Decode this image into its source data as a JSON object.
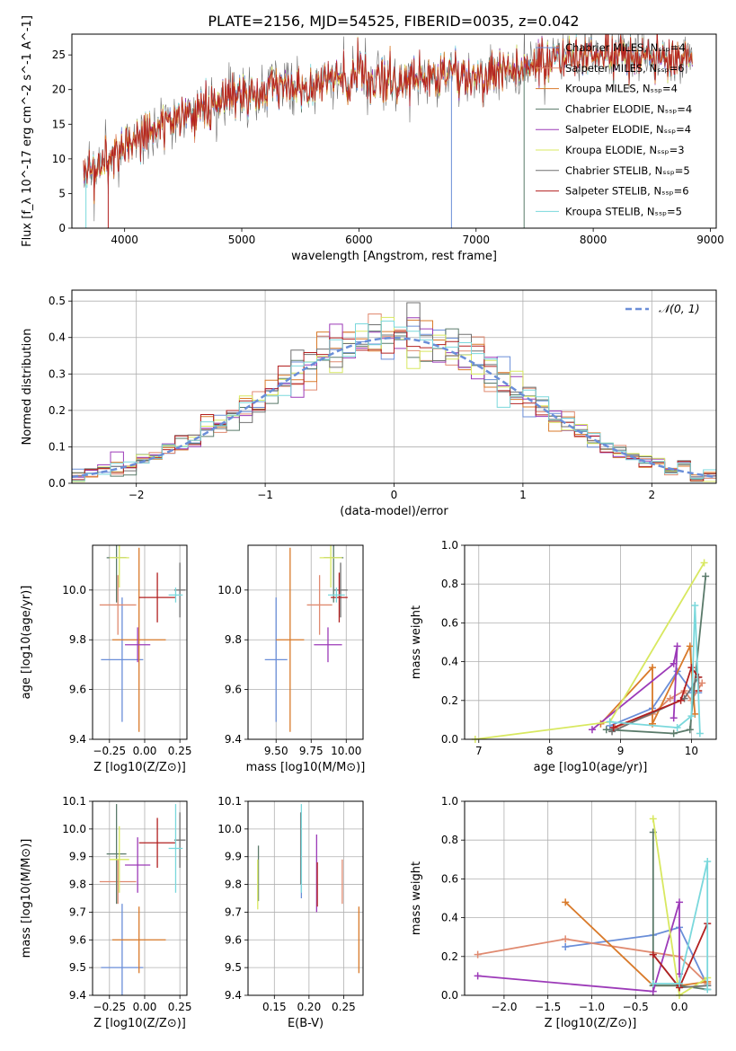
{
  "figure": {
    "title": "PLATE=2156, MJD=54525, FIBERID=0035, z=0.042"
  },
  "model_colors": [
    "#6a8ed8",
    "#e08a70",
    "#d97a2a",
    "#5a7a6a",
    "#9c3ab8",
    "#d8e860",
    "#707070",
    "#b22020",
    "#7ad8dc"
  ],
  "chart_data": [
    {
      "id": "spectrum",
      "type": "line",
      "title": "PLATE=2156, MJD=54525, FIBERID=0035, z=0.042",
      "xlabel": "wavelength [Angstrom, rest frame]",
      "ylabel": "Flux [f_λ 10^-17 erg cm^-2 s^-1 A^-1]",
      "xlim": [
        3550,
        9050
      ],
      "ylim": [
        0,
        28
      ],
      "xticks": [
        4000,
        5000,
        6000,
        7000,
        8000,
        9000
      ],
      "yticks": [
        0,
        5,
        10,
        15,
        20,
        25
      ],
      "grid": false,
      "legend_position": "right",
      "legend": [
        "Chabrier MILES, N_SSP=4",
        "Salpeter MILES, N_SSP=6",
        "Kroupa MILES, N_SSP=4",
        "Chabrier ELODIE, N_SSP=4",
        "Salpeter ELODIE, N_SSP=4",
        "Kroupa ELODIE, N_SSP=3",
        "Chabrier STELIB, N_SSP=5",
        "Salpeter STELIB, N_SSP=6",
        "Kroupa STELIB, N_SSP=5"
      ],
      "continuum": {
        "x": [
          3650,
          3800,
          4000,
          4200,
          4500,
          4800,
          5000,
          5300,
          5600,
          6000,
          6300,
          6600,
          7000,
          7400,
          7800,
          8200,
          8600,
          8850
        ],
        "y": [
          7,
          9,
          12,
          14,
          16,
          18,
          19,
          20.5,
          21,
          21.5,
          21.5,
          22,
          22,
          23,
          25,
          25,
          24.5,
          24.5
        ]
      }
    },
    {
      "id": "residuals",
      "type": "line",
      "xlabel": "(data-model)/error",
      "ylabel": "Normed distribution",
      "xlim": [
        -2.5,
        2.5
      ],
      "ylim": [
        0,
        0.53
      ],
      "xticks": [
        -2,
        -1,
        0,
        1,
        2
      ],
      "yticks": [
        0.0,
        0.1,
        0.2,
        0.3,
        0.4,
        0.5
      ],
      "grid": true,
      "legend": [
        "𝒩(0, 1)"
      ],
      "legend_position": "top-right"
    },
    {
      "id": "z-age",
      "type": "scatter",
      "xlabel": "Z [log10(Z/Z⊙)]",
      "ylabel": "age [log10(age/yr)]",
      "xlim": [
        -0.37,
        0.3
      ],
      "ylim": [
        9.4,
        10.18
      ],
      "xticks": [
        -0.25,
        0.0,
        0.25
      ],
      "yticks": [
        9.4,
        9.6,
        9.8,
        10.0
      ],
      "grid": true,
      "points": [
        {
          "x": -0.16,
          "xerr": 0.15,
          "y": 9.72,
          "yerr": 0.25
        },
        {
          "x": -0.19,
          "xerr": 0.13,
          "y": 9.94,
          "yerr": 0.12
        },
        {
          "x": -0.04,
          "xerr": 0.19,
          "y": 9.8,
          "yerr": 0.37
        },
        {
          "x": -0.2,
          "xerr": 0.07,
          "y": 10.13,
          "yerr": 0.18
        },
        {
          "x": -0.05,
          "xerr": 0.09,
          "y": 9.78,
          "yerr": 0.07
        },
        {
          "x": -0.18,
          "xerr": 0.07,
          "y": 10.13,
          "yerr": 0.12
        },
        {
          "x": 0.25,
          "xerr": 0.04,
          "y": 10.0,
          "yerr": 0.11
        },
        {
          "x": 0.09,
          "xerr": 0.13,
          "y": 9.97,
          "yerr": 0.1
        },
        {
          "x": 0.22,
          "xerr": 0.05,
          "y": 9.98,
          "yerr": 0.03
        }
      ]
    },
    {
      "id": "mass-age",
      "type": "scatter",
      "xlabel": "mass [log10(M/M⊙)]",
      "ylabel": "",
      "xlim": [
        9.3,
        10.12
      ],
      "ylim": [
        9.4,
        10.18
      ],
      "xticks": [
        9.5,
        9.75,
        10.0
      ],
      "yticks": [
        9.4,
        9.6,
        9.8,
        10.0
      ],
      "grid": true,
      "points": [
        {
          "x": 9.5,
          "xerr": 0.08,
          "y": 9.72,
          "yerr": 0.25
        },
        {
          "x": 9.81,
          "xerr": 0.09,
          "y": 9.94,
          "yerr": 0.12
        },
        {
          "x": 9.6,
          "xerr": 0.1,
          "y": 9.8,
          "yerr": 0.37
        },
        {
          "x": 9.91,
          "xerr": 0.07,
          "y": 10.13,
          "yerr": 0.18
        },
        {
          "x": 9.87,
          "xerr": 0.1,
          "y": 9.78,
          "yerr": 0.07
        },
        {
          "x": 9.89,
          "xerr": 0.08,
          "y": 10.13,
          "yerr": 0.12
        },
        {
          "x": 9.96,
          "xerr": 0.05,
          "y": 10.0,
          "yerr": 0.11
        },
        {
          "x": 9.95,
          "xerr": 0.06,
          "y": 9.97,
          "yerr": 0.1
        },
        {
          "x": 9.93,
          "xerr": 0.06,
          "y": 9.98,
          "yerr": 0.03
        }
      ]
    },
    {
      "id": "age-weight",
      "type": "line",
      "xlabel": "age [log10(age/yr)]",
      "ylabel": "mass weight",
      "xlim": [
        6.8,
        10.35
      ],
      "ylim": [
        0,
        1.0
      ],
      "xticks": [
        7,
        8,
        9,
        10
      ],
      "yticks": [
        0.0,
        0.2,
        0.4,
        0.6,
        0.8,
        1.0
      ],
      "grid": true,
      "series": [
        {
          "points": [
            [
              8.85,
              0.07
            ],
            [
              9.45,
              0.16
            ],
            [
              9.8,
              0.35
            ],
            [
              10.02,
              0.24
            ],
            [
              10.1,
              0.24
            ]
          ]
        },
        {
          "points": [
            [
              8.92,
              0.06
            ],
            [
              9.45,
              0.13
            ],
            [
              9.7,
              0.21
            ],
            [
              9.9,
              0.25
            ],
            [
              10.0,
              0.2
            ],
            [
              10.15,
              0.29
            ]
          ]
        },
        {
          "points": [
            [
              8.72,
              0.08
            ],
            [
              9.45,
              0.37
            ],
            [
              9.45,
              0.08
            ],
            [
              9.98,
              0.48
            ],
            [
              10.05,
              0.13
            ]
          ]
        },
        {
          "points": [
            [
              8.8,
              0.05
            ],
            [
              9.75,
              0.03
            ],
            [
              9.98,
              0.05
            ],
            [
              10.2,
              0.84
            ]
          ]
        },
        {
          "points": [
            [
              8.6,
              0.05
            ],
            [
              9.75,
              0.39
            ],
            [
              9.8,
              0.48
            ],
            [
              9.75,
              0.11
            ]
          ]
        },
        {
          "points": [
            [
              6.95,
              0.0
            ],
            [
              8.85,
              0.09
            ],
            [
              10.18,
              0.91
            ]
          ]
        },
        {
          "points": [
            [
              8.88,
              0.04
            ],
            [
              9.9,
              0.21
            ],
            [
              10.1,
              0.32
            ]
          ]
        },
        {
          "points": [
            [
              8.9,
              0.06
            ],
            [
              9.85,
              0.2
            ],
            [
              10.0,
              0.37
            ],
            [
              10.1,
              0.32
            ],
            [
              10.1,
              0.25
            ]
          ]
        },
        {
          "points": [
            [
              8.85,
              0.09
            ],
            [
              9.8,
              0.06
            ],
            [
              10.0,
              0.12
            ],
            [
              10.05,
              0.69
            ],
            [
              10.12,
              0.03
            ]
          ]
        }
      ]
    },
    {
      "id": "z-mass",
      "type": "scatter",
      "xlabel": "Z [log10(Z/Z⊙)]",
      "ylabel": "mass [log10(M/M⊙)]",
      "xlim": [
        -0.37,
        0.3
      ],
      "ylim": [
        9.4,
        10.1
      ],
      "xticks": [
        -0.25,
        0.0,
        0.25
      ],
      "yticks": [
        9.4,
        9.5,
        9.6,
        9.7,
        9.8,
        9.9,
        10.0,
        10.1
      ],
      "grid": true,
      "points": [
        {
          "x": -0.16,
          "xerr": 0.15,
          "y": 9.5,
          "yerr": 0.23
        },
        {
          "x": -0.19,
          "xerr": 0.13,
          "y": 9.81,
          "yerr": 0.08
        },
        {
          "x": -0.04,
          "xerr": 0.19,
          "y": 9.6,
          "yerr": 0.12
        },
        {
          "x": -0.2,
          "xerr": 0.07,
          "y": 9.91,
          "yerr": 0.18
        },
        {
          "x": -0.05,
          "xerr": 0.09,
          "y": 9.87,
          "yerr": 0.1
        },
        {
          "x": -0.18,
          "xerr": 0.07,
          "y": 9.89,
          "yerr": 0.12
        },
        {
          "x": 0.25,
          "xerr": 0.04,
          "y": 9.96,
          "yerr": 0.1
        },
        {
          "x": 0.09,
          "xerr": 0.13,
          "y": 9.95,
          "yerr": 0.09
        },
        {
          "x": 0.22,
          "xerr": 0.05,
          "y": 9.93,
          "yerr": 0.16
        }
      ]
    },
    {
      "id": "ebv-mass",
      "type": "scatter",
      "xlabel": "E(B-V)",
      "ylabel": "",
      "xlim": [
        0.112,
        0.278
      ],
      "ylim": [
        9.4,
        10.1
      ],
      "xticks": [
        0.15,
        0.2,
        0.25
      ],
      "yticks": [
        9.4,
        9.5,
        9.6,
        9.7,
        9.8,
        9.9,
        10.0,
        10.1
      ],
      "grid": true,
      "points": [
        {
          "x": 0.189,
          "y": 9.88,
          "yerr": 0.13
        },
        {
          "x": 0.248,
          "y": 9.81,
          "yerr": 0.08
        },
        {
          "x": 0.272,
          "y": 9.6,
          "yerr": 0.12
        },
        {
          "x": 0.127,
          "y": 9.84,
          "yerr": 0.1
        },
        {
          "x": 0.211,
          "y": 9.84,
          "yerr": 0.14
        },
        {
          "x": 0.126,
          "y": 9.8,
          "yerr": 0.09
        },
        {
          "x": 0.188,
          "y": 9.93,
          "yerr": 0.13
        },
        {
          "x": 0.212,
          "y": 9.8,
          "yerr": 0.08
        },
        {
          "x": 0.189,
          "y": 9.93,
          "yerr": 0.16
        }
      ]
    },
    {
      "id": "z-weight",
      "type": "line",
      "xlabel": "Z [log10(Z/Z⊙)]",
      "ylabel": "mass weight",
      "xlim": [
        -2.45,
        0.42
      ],
      "ylim": [
        0,
        1.0
      ],
      "xticks": [
        -2.0,
        -1.5,
        -1.0,
        -0.5,
        0.0
      ],
      "yticks": [
        0.0,
        0.2,
        0.4,
        0.6,
        0.8,
        1.0
      ],
      "grid": true,
      "series": [
        {
          "points": [
            [
              -1.3,
              0.25
            ],
            [
              -0.3,
              0.31
            ],
            [
              0.0,
              0.35
            ],
            [
              0.32,
              0.05
            ]
          ]
        },
        {
          "points": [
            [
              -2.3,
              0.21
            ],
            [
              -1.3,
              0.29
            ],
            [
              0.0,
              0.2
            ],
            [
              0.32,
              0.06
            ]
          ]
        },
        {
          "points": [
            [
              -1.3,
              0.48
            ],
            [
              -0.3,
              0.05
            ],
            [
              0.0,
              0.05
            ],
            [
              0.32,
              0.07
            ]
          ]
        },
        {
          "points": [
            [
              -0.3,
              0.84
            ],
            [
              -0.3,
              0.05
            ],
            [
              0.0,
              0.05
            ],
            [
              0.32,
              0.03
            ]
          ]
        },
        {
          "points": [
            [
              -2.3,
              0.1
            ],
            [
              -0.3,
              0.02
            ],
            [
              0.0,
              0.48
            ],
            [
              0.0,
              0.11
            ]
          ]
        },
        {
          "points": [
            [
              -0.3,
              0.91
            ],
            [
              0.0,
              0.0
            ],
            [
              0.32,
              0.09
            ]
          ]
        },
        {
          "points": [
            [
              -0.3,
              0.21
            ],
            [
              0.0,
              0.04
            ],
            [
              0.32,
              0.05
            ]
          ]
        },
        {
          "points": [
            [
              -0.3,
              0.21
            ],
            [
              0.0,
              0.04
            ],
            [
              0.32,
              0.37
            ]
          ]
        },
        {
          "points": [
            [
              -0.3,
              0.06
            ],
            [
              0.0,
              0.06
            ],
            [
              0.32,
              0.69
            ],
            [
              0.32,
              0.03
            ]
          ]
        }
      ]
    }
  ]
}
